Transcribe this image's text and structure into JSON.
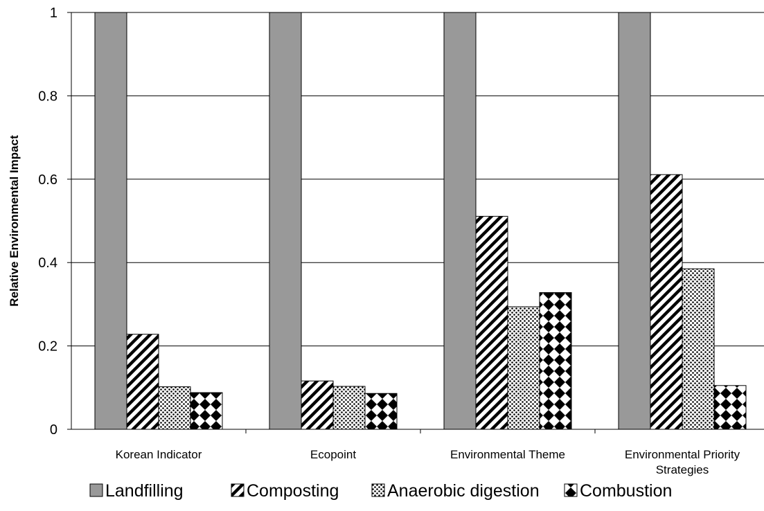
{
  "chart_data": {
    "type": "bar",
    "title": "",
    "xlabel": "",
    "ylabel": "Relative Environmental Impact",
    "ylim": [
      0,
      1
    ],
    "yticks": [
      "0",
      "0.2",
      "0.4",
      "0.6",
      "0.8",
      "1"
    ],
    "grid": true,
    "legend_position": "bottom",
    "categories": [
      [
        "Korean Indicator"
      ],
      [
        "Ecopoint"
      ],
      [
        "Environmental Theme"
      ],
      [
        "Environmental Priority",
        "Strategies"
      ]
    ],
    "series": [
      {
        "name": "Landfilling",
        "pattern": "solid-gray",
        "values": [
          1.0,
          1.0,
          1.0,
          1.0
        ]
      },
      {
        "name": "Composting",
        "pattern": "diagonal-hatch",
        "values": [
          0.228,
          0.116,
          0.511,
          0.611
        ]
      },
      {
        "name": "Anaerobic digestion",
        "pattern": "dots",
        "values": [
          0.102,
          0.103,
          0.294,
          0.385
        ]
      },
      {
        "name": "Combustion",
        "pattern": "diamonds",
        "values": [
          0.088,
          0.086,
          0.328,
          0.105
        ]
      }
    ],
    "colors": {
      "bar_fill": "#999999",
      "stroke": "#000000",
      "grid": "#000000"
    }
  }
}
